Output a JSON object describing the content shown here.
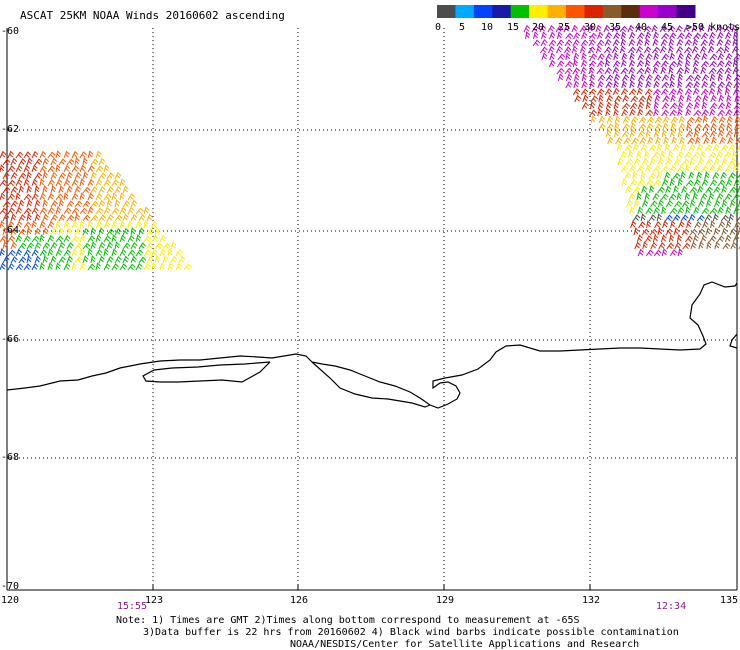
{
  "title": "ASCAT 25KM NOAA Winds 20160602 ascending",
  "legend": {
    "labels": [
      "0",
      "5",
      "10",
      "15",
      "20",
      "25",
      "30",
      "35",
      "40",
      "45"
    ],
    "unit_label": ">50 knots",
    "colors": [
      "#4d4d4d",
      "#00aaff",
      "#0044ff",
      "#1a1aaa",
      "#00c000",
      "#ffee00",
      "#ffb000",
      "#ff5500",
      "#dd2200",
      "#8b5a2b",
      "#5a2d0c",
      "#cc00cc",
      "#9900cc",
      "#440088"
    ]
  },
  "lat_labels": [
    "-60",
    "-62",
    "-64",
    "-66",
    "-68",
    "-70"
  ],
  "lon_labels": [
    "120",
    "123",
    "126",
    "129",
    "132",
    "135"
  ],
  "time_labels": {
    "left": "15:55",
    "right": "12:34"
  },
  "notes": {
    "line1": "Note: 1) Times are GMT 2)Times along bottom correspond to measurement at -65S",
    "line2": "3)Data buffer is 22 hrs from 20160602 4) Black wind barbs indicate possible contamination",
    "line3": "NOAA/NESDIS/Center for Satellite Applications and Research"
  }
}
